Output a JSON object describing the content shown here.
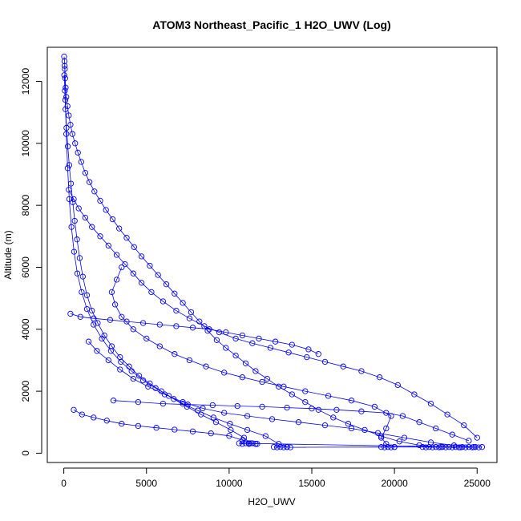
{
  "chart_data": {
    "type": "scatter",
    "title": "ATOM3 Northeast_Pacific_1 H2O_UWV (Log)",
    "xlabel": "H2O_UWV",
    "ylabel": "Altitude (m)",
    "xlim": [
      -1000,
      26200
    ],
    "ylim": [
      -300,
      13100
    ],
    "x_ticks": [
      0,
      5000,
      10000,
      15000,
      20000,
      25000
    ],
    "y_ticks": [
      0,
      2000,
      4000,
      6000,
      8000,
      10000,
      12000
    ],
    "point_color": "#0000ff",
    "line_color": "#0000ff",
    "grid": false,
    "series": [
      {
        "values": [
          [
            20,
            12800
          ],
          [
            40,
            12650
          ],
          [
            60,
            12400
          ],
          [
            80,
            12100
          ],
          [
            110,
            11800
          ],
          [
            150,
            11500
          ],
          [
            220,
            11200
          ],
          [
            300,
            10900
          ],
          [
            400,
            10600
          ],
          [
            520,
            10300
          ],
          [
            680,
            10000
          ],
          [
            850,
            9700
          ],
          [
            1050,
            9400
          ],
          [
            1300,
            9050
          ],
          [
            1550,
            8750
          ],
          [
            1850,
            8450
          ],
          [
            2200,
            8150
          ],
          [
            2550,
            7850
          ],
          [
            2950,
            7550
          ],
          [
            3350,
            7250
          ],
          [
            3800,
            6950
          ],
          [
            4250,
            6650
          ],
          [
            4700,
            6350
          ],
          [
            5200,
            6050
          ],
          [
            5700,
            5750
          ],
          [
            6200,
            5450
          ],
          [
            6700,
            5150
          ],
          [
            7200,
            4850
          ],
          [
            7700,
            4550
          ],
          [
            8200,
            4250
          ],
          [
            8700,
            3950
          ],
          [
            9250,
            3650
          ],
          [
            9800,
            3400
          ],
          [
            10400,
            3150
          ],
          [
            11000,
            2900
          ],
          [
            11600,
            2650
          ],
          [
            12300,
            2400
          ],
          [
            13000,
            2150
          ],
          [
            13800,
            1900
          ],
          [
            14600,
            1650
          ],
          [
            15400,
            1400
          ],
          [
            16300,
            1150
          ],
          [
            17200,
            950
          ],
          [
            18200,
            750
          ],
          [
            19200,
            550
          ],
          [
            20300,
            380
          ],
          [
            21500,
            260
          ],
          [
            22800,
            200
          ],
          [
            24000,
            190
          ],
          [
            25300,
            200
          ]
        ]
      },
      {
        "values": [
          [
            30,
            12200
          ],
          [
            60,
            11700
          ],
          [
            100,
            11100
          ],
          [
            160,
            10500
          ],
          [
            240,
            9900
          ],
          [
            330,
            9300
          ],
          [
            430,
            8700
          ],
          [
            540,
            8100
          ],
          [
            660,
            7500
          ],
          [
            800,
            6900
          ],
          [
            960,
            6300
          ],
          [
            1150,
            5700
          ],
          [
            1400,
            5100
          ],
          [
            1700,
            4600
          ],
          [
            2050,
            4200
          ],
          [
            2450,
            3800
          ],
          [
            2900,
            3450
          ],
          [
            3400,
            3100
          ],
          [
            3950,
            2800
          ],
          [
            4550,
            2500
          ],
          [
            5200,
            2250
          ],
          [
            5900,
            2000
          ],
          [
            6650,
            1750
          ],
          [
            7450,
            1500
          ],
          [
            8300,
            1250
          ],
          [
            9200,
            1000
          ],
          [
            10100,
            750
          ],
          [
            10900,
            500
          ],
          [
            11300,
            320
          ],
          [
            11600,
            300
          ]
        ]
      },
      {
        "values": [
          [
            50,
            12500
          ],
          [
            90,
            11400
          ],
          [
            150,
            10300
          ],
          [
            230,
            9200
          ],
          [
            330,
            8200
          ],
          [
            460,
            7300
          ],
          [
            620,
            6500
          ],
          [
            820,
            5800
          ],
          [
            1080,
            5200
          ],
          [
            1400,
            4650
          ],
          [
            1800,
            4150
          ],
          [
            2300,
            3700
          ],
          [
            2850,
            3300
          ],
          [
            3450,
            2950
          ],
          [
            4100,
            2650
          ],
          [
            4800,
            2350
          ],
          [
            5550,
            2100
          ],
          [
            6350,
            1850
          ],
          [
            7200,
            1600
          ],
          [
            8100,
            1380
          ],
          [
            9050,
            1150
          ],
          [
            10050,
            950
          ],
          [
            11100,
            750
          ],
          [
            12200,
            550
          ],
          [
            13000,
            300
          ],
          [
            13500,
            200
          ]
        ]
      },
      {
        "values": [
          [
            300,
            8500
          ],
          [
            600,
            8200
          ],
          [
            900,
            7900
          ],
          [
            1300,
            7600
          ],
          [
            1700,
            7300
          ],
          [
            2200,
            7000
          ],
          [
            2700,
            6700
          ],
          [
            3200,
            6400
          ],
          [
            3700,
            6100
          ],
          [
            4200,
            5800
          ],
          [
            4700,
            5500
          ],
          [
            5300,
            5200
          ],
          [
            6000,
            4900
          ],
          [
            6800,
            4600
          ],
          [
            7600,
            4350
          ],
          [
            8500,
            4100
          ],
          [
            9400,
            3900
          ],
          [
            10400,
            3700
          ],
          [
            11400,
            3550
          ],
          [
            12500,
            3400
          ],
          [
            13600,
            3250
          ],
          [
            14700,
            3100
          ],
          [
            15800,
            2950
          ],
          [
            16900,
            2800
          ],
          [
            18000,
            2650
          ],
          [
            19100,
            2450
          ],
          [
            20200,
            2200
          ],
          [
            21200,
            1900
          ],
          [
            22200,
            1600
          ],
          [
            23200,
            1250
          ],
          [
            24200,
            900
          ],
          [
            25000,
            500
          ]
        ]
      },
      {
        "values": [
          [
            3500,
            6000
          ],
          [
            3200,
            5600
          ],
          [
            2900,
            5200
          ],
          [
            3100,
            4800
          ],
          [
            3500,
            4400
          ],
          [
            4200,
            4000
          ],
          [
            5000,
            3700
          ],
          [
            5800,
            3450
          ],
          [
            6700,
            3200
          ],
          [
            7600,
            3000
          ],
          [
            8600,
            2800
          ],
          [
            9700,
            2600
          ],
          [
            10800,
            2450
          ],
          [
            12000,
            2300
          ],
          [
            13300,
            2150
          ],
          [
            14600,
            2000
          ],
          [
            16000,
            1850
          ],
          [
            17400,
            1700
          ],
          [
            18800,
            1500
          ],
          [
            19800,
            1200
          ],
          [
            19500,
            800
          ],
          [
            19200,
            500
          ],
          [
            19500,
            300
          ],
          [
            20000,
            200
          ]
        ]
      },
      {
        "values": [
          [
            1500,
            3600
          ],
          [
            2000,
            3300
          ],
          [
            2700,
            3000
          ],
          [
            3400,
            2700
          ],
          [
            4200,
            2400
          ],
          [
            5100,
            2150
          ],
          [
            6100,
            1900
          ],
          [
            7200,
            1650
          ],
          [
            8400,
            1450
          ],
          [
            9700,
            1300
          ],
          [
            11100,
            1200
          ],
          [
            12600,
            1100
          ],
          [
            14200,
            1000
          ],
          [
            15800,
            900
          ],
          [
            17400,
            800
          ],
          [
            19000,
            650
          ],
          [
            20600,
            500
          ],
          [
            22200,
            350
          ],
          [
            23600,
            250
          ],
          [
            24800,
            200
          ]
        ]
      },
      {
        "values": [
          [
            600,
            1400
          ],
          [
            1100,
            1250
          ],
          [
            1800,
            1150
          ],
          [
            2600,
            1050
          ],
          [
            3500,
            950
          ],
          [
            4500,
            880
          ],
          [
            5600,
            820
          ],
          [
            6700,
            760
          ],
          [
            7800,
            700
          ],
          [
            8900,
            640
          ],
          [
            10000,
            560
          ],
          [
            10800,
            420
          ],
          [
            11200,
            320
          ],
          [
            11700,
            300
          ]
        ]
      },
      {
        "values": [
          [
            400,
            4500
          ],
          [
            1000,
            4400
          ],
          [
            1800,
            4350
          ],
          [
            2800,
            4300
          ],
          [
            3800,
            4250
          ],
          [
            4800,
            4200
          ],
          [
            5800,
            4150
          ],
          [
            6800,
            4100
          ],
          [
            7800,
            4050
          ],
          [
            8800,
            4000
          ],
          [
            9800,
            3900
          ],
          [
            10800,
            3800
          ],
          [
            11800,
            3700
          ],
          [
            12800,
            3600
          ],
          [
            13800,
            3500
          ],
          [
            14800,
            3350
          ],
          [
            15400,
            3200
          ]
        ]
      },
      {
        "values": [
          [
            3000,
            1700
          ],
          [
            4500,
            1650
          ],
          [
            6000,
            1600
          ],
          [
            7500,
            1570
          ],
          [
            9000,
            1550
          ],
          [
            10500,
            1520
          ],
          [
            12000,
            1500
          ],
          [
            13500,
            1470
          ],
          [
            15000,
            1440
          ],
          [
            16500,
            1400
          ],
          [
            18000,
            1350
          ],
          [
            19500,
            1300
          ],
          [
            20500,
            1200
          ],
          [
            21500,
            1000
          ],
          [
            22500,
            800
          ],
          [
            23500,
            600
          ],
          [
            24500,
            400
          ]
        ]
      },
      {
        "values": [
          [
            12700,
            200
          ],
          [
            12900,
            190
          ],
          [
            13100,
            200
          ],
          [
            13300,
            190
          ],
          [
            13500,
            200
          ],
          [
            13700,
            190
          ],
          [
            19200,
            200
          ],
          [
            19400,
            190
          ],
          [
            19600,
            200
          ],
          [
            19800,
            190
          ],
          [
            20000,
            200
          ],
          [
            21700,
            200
          ],
          [
            21900,
            190
          ],
          [
            22100,
            200
          ],
          [
            22300,
            190
          ],
          [
            22500,
            200
          ],
          [
            22700,
            190
          ],
          [
            22900,
            200
          ],
          [
            23100,
            190
          ],
          [
            23300,
            200
          ],
          [
            23500,
            190
          ],
          [
            23700,
            200
          ],
          [
            23900,
            190
          ],
          [
            24100,
            200
          ],
          [
            24300,
            190
          ],
          [
            24500,
            200
          ],
          [
            24700,
            190
          ],
          [
            24900,
            200
          ],
          [
            25100,
            190
          ],
          [
            10600,
            320
          ],
          [
            10800,
            300
          ],
          [
            11000,
            320
          ],
          [
            11200,
            300
          ],
          [
            11400,
            320
          ],
          [
            11600,
            300
          ]
        ]
      }
    ]
  }
}
